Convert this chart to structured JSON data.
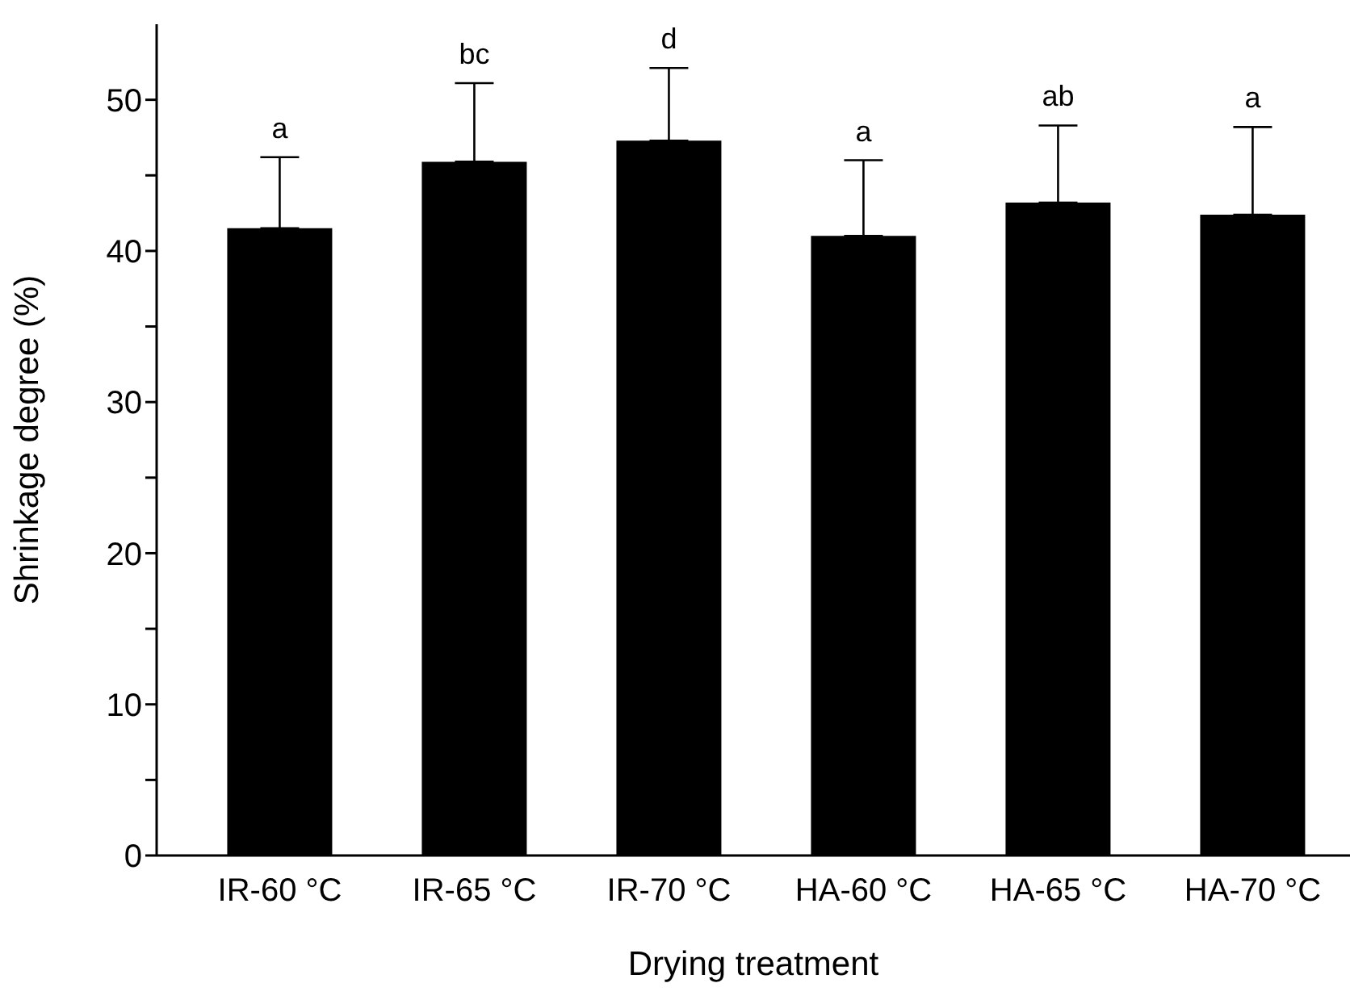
{
  "chart_data": {
    "type": "bar",
    "xlabel": "Drying treatment",
    "ylabel": "Shrinkage degree (%)",
    "categories": [
      "IR-60 °C",
      "IR-65 °C",
      "IR-70 °C",
      "HA-60 °C",
      "HA-65 °C",
      "HA-70 °C"
    ],
    "values": [
      41.5,
      45.9,
      47.3,
      41.0,
      43.2,
      42.4
    ],
    "errors": [
      [
        41.5,
        46.2
      ],
      [
        45.9,
        51.1
      ],
      [
        47.3,
        52.1
      ],
      [
        41.0,
        46.0
      ],
      [
        43.2,
        48.3
      ],
      [
        42.4,
        48.2
      ]
    ],
    "color": "#000000",
    "ylim": [
      0,
      55
    ],
    "yticks": [
      0,
      {
        "value": 5,
        "label": null
      },
      10,
      {
        "value": 15,
        "label": null
      },
      20,
      {
        "value": 25,
        "label": null
      },
      30,
      {
        "value": 35,
        "label": null
      },
      40,
      {
        "value": 45,
        "label": null
      },
      50
    ],
    "annotations": [
      {
        "text": "a",
        "x": "IR-60 °C",
        "y": 46.2
      },
      {
        "text": "bc",
        "x": "IR-65 °C",
        "y": 51.1
      },
      {
        "text": "d",
        "x": "IR-70 °C",
        "y": 52.1
      },
      {
        "text": "a",
        "x": "HA-60 °C",
        "y": 46.0
      },
      {
        "text": "ab",
        "x": "HA-65 °C",
        "y": 48.3
      },
      {
        "text": "a",
        "x": "HA-70 °C",
        "y": 48.2
      }
    ],
    "grid": false,
    "legend": false
  }
}
